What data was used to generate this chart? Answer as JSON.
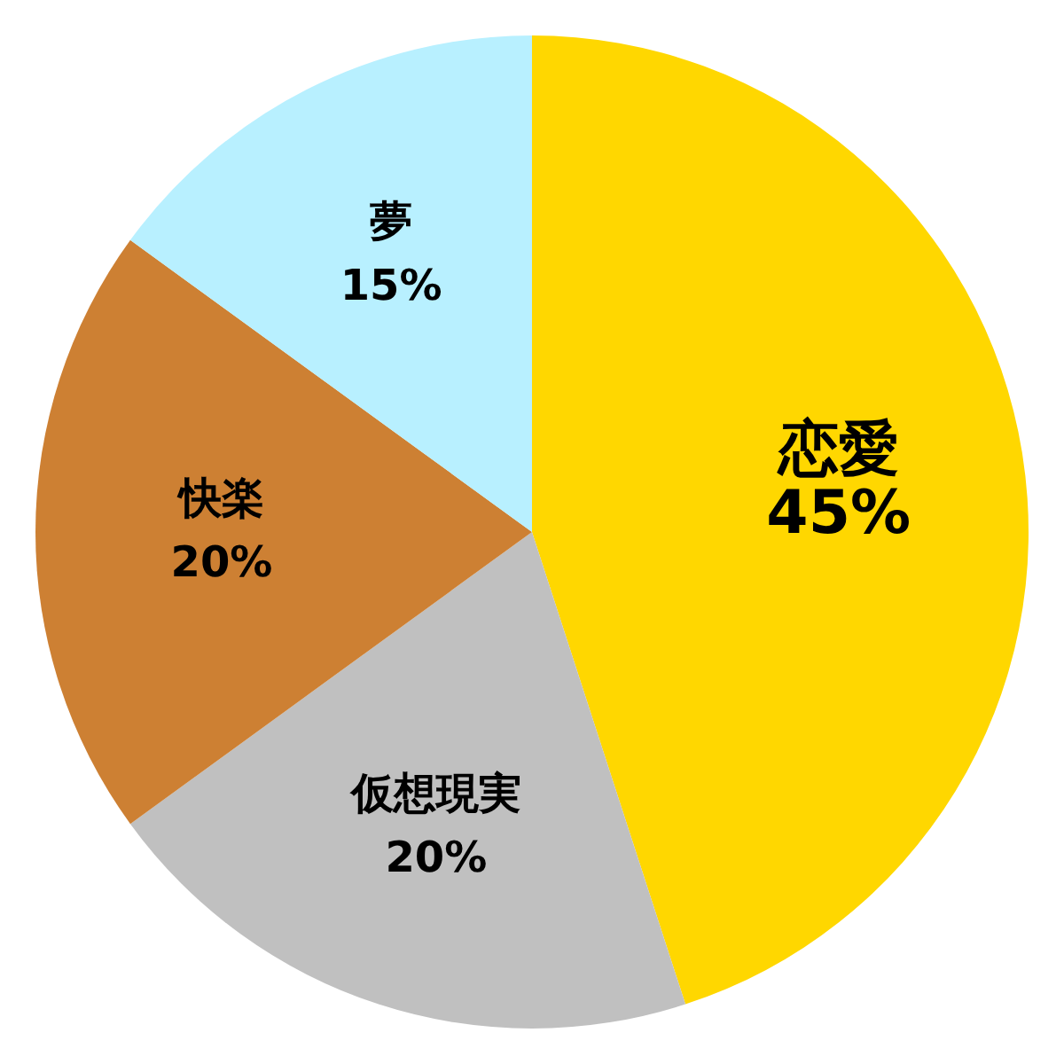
{
  "chart_data": {
    "type": "pie",
    "categories": [
      "恋愛",
      "仮想現実",
      "快楽",
      "夢"
    ],
    "values": [
      45,
      20,
      20,
      15
    ],
    "colors": [
      "#ffd700",
      "#c0c0c0",
      "#cd8033",
      "#b8f0ff"
    ],
    "value_labels": [
      "45%",
      "20%",
      "20%",
      "15%"
    ],
    "legend": false
  }
}
